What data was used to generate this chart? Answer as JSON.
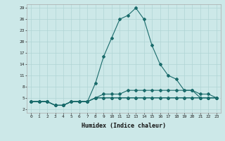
{
  "xlabel": "Humidex (Indice chaleur)",
  "xlim": [
    -0.5,
    23.5
  ],
  "ylim": [
    1,
    30
  ],
  "yticks": [
    2,
    5,
    8,
    11,
    14,
    17,
    20,
    23,
    26,
    29
  ],
  "xticks": [
    0,
    1,
    2,
    3,
    4,
    5,
    6,
    7,
    8,
    9,
    10,
    11,
    12,
    13,
    14,
    15,
    16,
    17,
    18,
    19,
    20,
    21,
    22,
    23
  ],
  "bg_color": "#cce8e8",
  "grid_color": "#b0d4d4",
  "line_color": "#1a6b6b",
  "series": [
    {
      "x": [
        0,
        1,
        2,
        3,
        4,
        5,
        6,
        7,
        8,
        9,
        10,
        11,
        12,
        13,
        14,
        15,
        16,
        17,
        18,
        19,
        20,
        21,
        22,
        23
      ],
      "y": [
        4,
        4,
        4,
        3,
        3,
        4,
        4,
        4,
        9,
        16,
        21,
        26,
        27,
        29,
        26,
        19,
        14,
        11,
        10,
        7,
        7,
        5,
        5,
        5
      ]
    },
    {
      "x": [
        0,
        1,
        2,
        3,
        4,
        5,
        6,
        7,
        8,
        9,
        10,
        11,
        12,
        13,
        14,
        15,
        16,
        17,
        18,
        19,
        20,
        21,
        22,
        23
      ],
      "y": [
        4,
        4,
        4,
        3,
        3,
        4,
        4,
        4,
        5,
        5,
        5,
        5,
        5,
        5,
        5,
        5,
        5,
        5,
        5,
        5,
        5,
        5,
        5,
        5
      ]
    },
    {
      "x": [
        0,
        1,
        2,
        3,
        4,
        5,
        6,
        7,
        8,
        9,
        10,
        11,
        12,
        13,
        14,
        15,
        16,
        17,
        18,
        19,
        20,
        21,
        22,
        23
      ],
      "y": [
        4,
        4,
        4,
        3,
        3,
        4,
        4,
        4,
        5,
        5,
        5,
        5,
        5,
        5,
        5,
        5,
        5,
        5,
        5,
        5,
        5,
        5,
        5,
        5
      ]
    },
    {
      "x": [
        0,
        1,
        2,
        3,
        4,
        5,
        6,
        7,
        8,
        9,
        10,
        11,
        12,
        13,
        14,
        15,
        16,
        17,
        18,
        19,
        20,
        21,
        22,
        23
      ],
      "y": [
        4,
        4,
        4,
        3,
        3,
        4,
        4,
        4,
        5,
        6,
        6,
        6,
        7,
        7,
        7,
        7,
        7,
        7,
        7,
        7,
        7,
        6,
        6,
        5
      ]
    }
  ]
}
